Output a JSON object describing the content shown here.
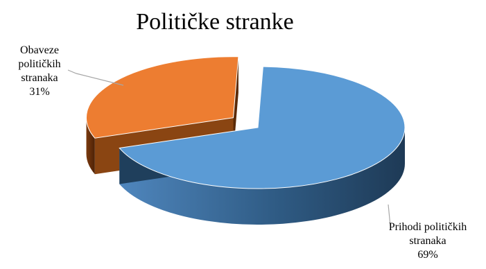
{
  "chart_data": {
    "type": "pie",
    "style": "3d-exploded",
    "title": "Političke stranke",
    "categories": [
      "Prihodi političkih stranaka",
      "Obaveze političkih stranaka"
    ],
    "values": [
      69,
      31
    ],
    "unit": "%",
    "colors": {
      "Prihodi političkih stranaka": {
        "top": "#5B9BD5",
        "side_dark": "#1f3f5c",
        "side_light": "#4a7fb0"
      },
      "Obaveze političkih stranaka": {
        "top": "#ED7D31",
        "side_dark": "#5a2a08",
        "side_light": "#8a4512"
      }
    },
    "labels": [
      {
        "lines": [
          "Obaveze",
          "političkih",
          "stranaka",
          "31%"
        ]
      },
      {
        "lines": [
          "Prihodi političkih",
          "stranaka",
          "69%"
        ]
      }
    ],
    "legend": "none",
    "leader_line_color": "#a6a6a6"
  }
}
